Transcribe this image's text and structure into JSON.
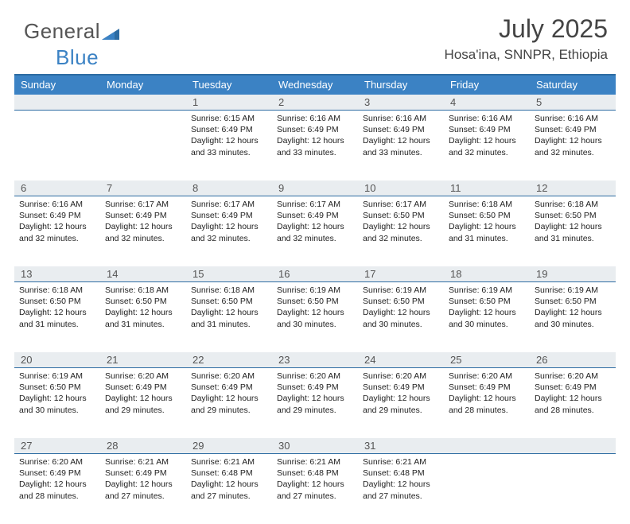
{
  "brand": {
    "part1": "General",
    "part2": "Blue"
  },
  "title": "July 2025",
  "location": "Hosa'ina, SNNPR, Ethiopia",
  "colors": {
    "header_bg": "#3b82c4",
    "header_border": "#2d6ca2",
    "daynum_bg": "#e9edf0",
    "text": "#333333"
  },
  "day_names": [
    "Sunday",
    "Monday",
    "Tuesday",
    "Wednesday",
    "Thursday",
    "Friday",
    "Saturday"
  ],
  "weeks": [
    [
      {
        "num": "",
        "sunrise": "",
        "sunset": "",
        "daylight": ""
      },
      {
        "num": "",
        "sunrise": "",
        "sunset": "",
        "daylight": ""
      },
      {
        "num": "1",
        "sunrise": "Sunrise: 6:15 AM",
        "sunset": "Sunset: 6:49 PM",
        "daylight": "Daylight: 12 hours and 33 minutes."
      },
      {
        "num": "2",
        "sunrise": "Sunrise: 6:16 AM",
        "sunset": "Sunset: 6:49 PM",
        "daylight": "Daylight: 12 hours and 33 minutes."
      },
      {
        "num": "3",
        "sunrise": "Sunrise: 6:16 AM",
        "sunset": "Sunset: 6:49 PM",
        "daylight": "Daylight: 12 hours and 33 minutes."
      },
      {
        "num": "4",
        "sunrise": "Sunrise: 6:16 AM",
        "sunset": "Sunset: 6:49 PM",
        "daylight": "Daylight: 12 hours and 32 minutes."
      },
      {
        "num": "5",
        "sunrise": "Sunrise: 6:16 AM",
        "sunset": "Sunset: 6:49 PM",
        "daylight": "Daylight: 12 hours and 32 minutes."
      }
    ],
    [
      {
        "num": "6",
        "sunrise": "Sunrise: 6:16 AM",
        "sunset": "Sunset: 6:49 PM",
        "daylight": "Daylight: 12 hours and 32 minutes."
      },
      {
        "num": "7",
        "sunrise": "Sunrise: 6:17 AM",
        "sunset": "Sunset: 6:49 PM",
        "daylight": "Daylight: 12 hours and 32 minutes."
      },
      {
        "num": "8",
        "sunrise": "Sunrise: 6:17 AM",
        "sunset": "Sunset: 6:49 PM",
        "daylight": "Daylight: 12 hours and 32 minutes."
      },
      {
        "num": "9",
        "sunrise": "Sunrise: 6:17 AM",
        "sunset": "Sunset: 6:49 PM",
        "daylight": "Daylight: 12 hours and 32 minutes."
      },
      {
        "num": "10",
        "sunrise": "Sunrise: 6:17 AM",
        "sunset": "Sunset: 6:50 PM",
        "daylight": "Daylight: 12 hours and 32 minutes."
      },
      {
        "num": "11",
        "sunrise": "Sunrise: 6:18 AM",
        "sunset": "Sunset: 6:50 PM",
        "daylight": "Daylight: 12 hours and 31 minutes."
      },
      {
        "num": "12",
        "sunrise": "Sunrise: 6:18 AM",
        "sunset": "Sunset: 6:50 PM",
        "daylight": "Daylight: 12 hours and 31 minutes."
      }
    ],
    [
      {
        "num": "13",
        "sunrise": "Sunrise: 6:18 AM",
        "sunset": "Sunset: 6:50 PM",
        "daylight": "Daylight: 12 hours and 31 minutes."
      },
      {
        "num": "14",
        "sunrise": "Sunrise: 6:18 AM",
        "sunset": "Sunset: 6:50 PM",
        "daylight": "Daylight: 12 hours and 31 minutes."
      },
      {
        "num": "15",
        "sunrise": "Sunrise: 6:18 AM",
        "sunset": "Sunset: 6:50 PM",
        "daylight": "Daylight: 12 hours and 31 minutes."
      },
      {
        "num": "16",
        "sunrise": "Sunrise: 6:19 AM",
        "sunset": "Sunset: 6:50 PM",
        "daylight": "Daylight: 12 hours and 30 minutes."
      },
      {
        "num": "17",
        "sunrise": "Sunrise: 6:19 AM",
        "sunset": "Sunset: 6:50 PM",
        "daylight": "Daylight: 12 hours and 30 minutes."
      },
      {
        "num": "18",
        "sunrise": "Sunrise: 6:19 AM",
        "sunset": "Sunset: 6:50 PM",
        "daylight": "Daylight: 12 hours and 30 minutes."
      },
      {
        "num": "19",
        "sunrise": "Sunrise: 6:19 AM",
        "sunset": "Sunset: 6:50 PM",
        "daylight": "Daylight: 12 hours and 30 minutes."
      }
    ],
    [
      {
        "num": "20",
        "sunrise": "Sunrise: 6:19 AM",
        "sunset": "Sunset: 6:50 PM",
        "daylight": "Daylight: 12 hours and 30 minutes."
      },
      {
        "num": "21",
        "sunrise": "Sunrise: 6:20 AM",
        "sunset": "Sunset: 6:49 PM",
        "daylight": "Daylight: 12 hours and 29 minutes."
      },
      {
        "num": "22",
        "sunrise": "Sunrise: 6:20 AM",
        "sunset": "Sunset: 6:49 PM",
        "daylight": "Daylight: 12 hours and 29 minutes."
      },
      {
        "num": "23",
        "sunrise": "Sunrise: 6:20 AM",
        "sunset": "Sunset: 6:49 PM",
        "daylight": "Daylight: 12 hours and 29 minutes."
      },
      {
        "num": "24",
        "sunrise": "Sunrise: 6:20 AM",
        "sunset": "Sunset: 6:49 PM",
        "daylight": "Daylight: 12 hours and 29 minutes."
      },
      {
        "num": "25",
        "sunrise": "Sunrise: 6:20 AM",
        "sunset": "Sunset: 6:49 PM",
        "daylight": "Daylight: 12 hours and 28 minutes."
      },
      {
        "num": "26",
        "sunrise": "Sunrise: 6:20 AM",
        "sunset": "Sunset: 6:49 PM",
        "daylight": "Daylight: 12 hours and 28 minutes."
      }
    ],
    [
      {
        "num": "27",
        "sunrise": "Sunrise: 6:20 AM",
        "sunset": "Sunset: 6:49 PM",
        "daylight": "Daylight: 12 hours and 28 minutes."
      },
      {
        "num": "28",
        "sunrise": "Sunrise: 6:21 AM",
        "sunset": "Sunset: 6:49 PM",
        "daylight": "Daylight: 12 hours and 27 minutes."
      },
      {
        "num": "29",
        "sunrise": "Sunrise: 6:21 AM",
        "sunset": "Sunset: 6:48 PM",
        "daylight": "Daylight: 12 hours and 27 minutes."
      },
      {
        "num": "30",
        "sunrise": "Sunrise: 6:21 AM",
        "sunset": "Sunset: 6:48 PM",
        "daylight": "Daylight: 12 hours and 27 minutes."
      },
      {
        "num": "31",
        "sunrise": "Sunrise: 6:21 AM",
        "sunset": "Sunset: 6:48 PM",
        "daylight": "Daylight: 12 hours and 27 minutes."
      },
      {
        "num": "",
        "sunrise": "",
        "sunset": "",
        "daylight": ""
      },
      {
        "num": "",
        "sunrise": "",
        "sunset": "",
        "daylight": ""
      }
    ]
  ]
}
